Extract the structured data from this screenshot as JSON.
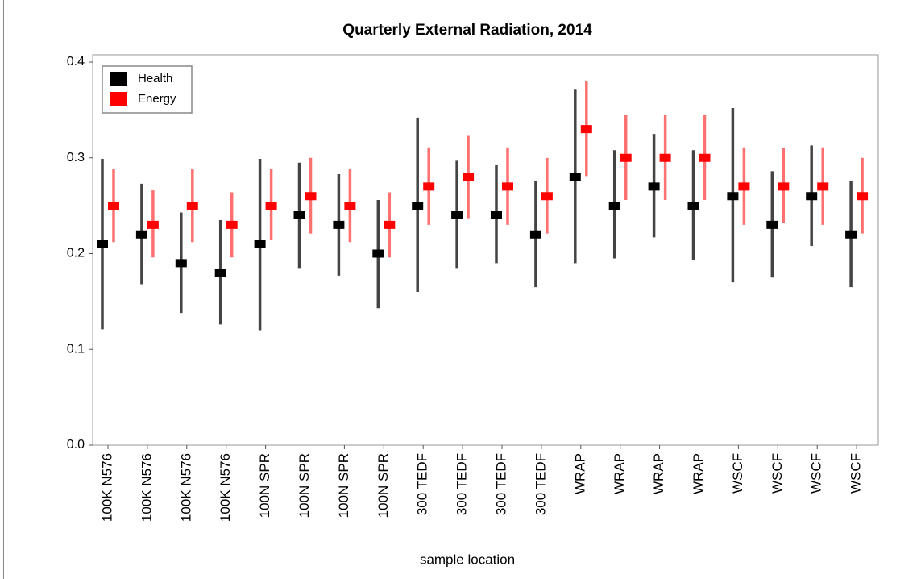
{
  "chart_data": {
    "type": "errorbar",
    "title": "Quarterly External Radiation, 2014",
    "xlabel": "sample location",
    "categories": [
      "100K N576",
      "100K N576",
      "100K N576",
      "100K N576",
      "100N SPR",
      "100N SPR",
      "100N SPR",
      "100N SPR",
      "300 TEDF",
      "300 TEDF",
      "300 TEDF",
      "300 TEDF",
      "WRAP",
      "WRAP",
      "WRAP",
      "WRAP",
      "WSCF",
      "WSCF",
      "WSCF",
      "WSCF"
    ],
    "series": [
      {
        "name": "Health",
        "color": "#000000",
        "values": [
          0.21,
          0.22,
          0.19,
          0.18,
          0.21,
          0.24,
          0.23,
          0.2,
          0.25,
          0.24,
          0.24,
          0.22,
          0.28,
          0.25,
          0.27,
          0.25,
          0.26,
          0.23,
          0.26,
          0.22
        ],
        "low": [
          0.121,
          0.168,
          0.138,
          0.126,
          0.12,
          0.185,
          0.177,
          0.143,
          0.16,
          0.185,
          0.19,
          0.165,
          0.19,
          0.195,
          0.217,
          0.193,
          0.17,
          0.175,
          0.208,
          0.165
        ],
        "high": [
          0.299,
          0.273,
          0.243,
          0.235,
          0.299,
          0.295,
          0.283,
          0.256,
          0.342,
          0.297,
          0.293,
          0.276,
          0.372,
          0.308,
          0.325,
          0.308,
          0.352,
          0.286,
          0.313,
          0.276
        ]
      },
      {
        "name": "Energy",
        "color": "#ff0000",
        "values": [
          0.25,
          0.23,
          0.25,
          0.23,
          0.25,
          0.26,
          0.25,
          0.23,
          0.27,
          0.28,
          0.27,
          0.26,
          0.33,
          0.3,
          0.3,
          0.3,
          0.27,
          0.27,
          0.27,
          0.26
        ],
        "low": [
          0.212,
          0.196,
          0.212,
          0.196,
          0.214,
          0.221,
          0.212,
          0.196,
          0.23,
          0.237,
          0.23,
          0.221,
          0.281,
          0.256,
          0.256,
          0.256,
          0.23,
          0.232,
          0.23,
          0.221
        ],
        "high": [
          0.288,
          0.266,
          0.288,
          0.264,
          0.288,
          0.3,
          0.288,
          0.264,
          0.311,
          0.323,
          0.311,
          0.3,
          0.38,
          0.345,
          0.345,
          0.345,
          0.311,
          0.31,
          0.311,
          0.3
        ]
      }
    ],
    "ylim": [
      0,
      0.4
    ],
    "yticks": [
      {
        "value": 0,
        "label": "0.0"
      },
      0.1,
      0.2,
      0.3,
      0.4
    ],
    "legend": "upper left"
  }
}
